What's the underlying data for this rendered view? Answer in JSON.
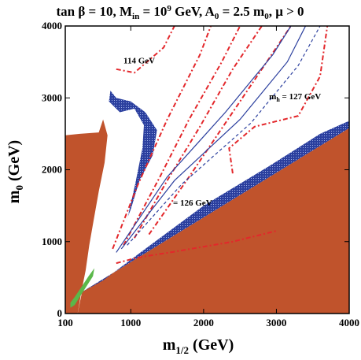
{
  "chart_data": {
    "type": "contour",
    "title": {
      "main": "tan β = 10, M",
      "sub1": "in",
      "mid1": " = 10",
      "sup": "9",
      "mid2": " GeV, A",
      "sub2": "0",
      "mid3": " = 2.5 m",
      "sub3": "0",
      "tail": ", μ > 0"
    },
    "xlabel": {
      "main": "m",
      "sub": "1/2",
      "tail": " (GeV)"
    },
    "ylabel": {
      "main": "m",
      "sub": "0",
      "tail": " (GeV)"
    },
    "xlim": [
      100,
      4000
    ],
    "ylim": [
      0,
      4000
    ],
    "xticks": [
      100,
      1000,
      2000,
      3000,
      4000
    ],
    "yticks": [
      0,
      1000,
      2000,
      3000,
      4000
    ],
    "grid": false,
    "colors": {
      "excluded_stau_lsp": "#c0532c",
      "dark_matter_band": "#2b3f9e",
      "bsmumu_green": "#5bb84a",
      "higgs_contours": "#e3272b",
      "alt_contours": "#2b3f9e"
    },
    "annotations": [
      {
        "text": "114 GeV",
        "x": 900,
        "y": 3480
      },
      {
        "text": "m",
        "sub": "h",
        "rest": " = 127 GeV",
        "x": 2900,
        "y": 2980
      },
      {
        "text": "= 126 GeV",
        "x": 1580,
        "y": 1500
      }
    ],
    "regions": {
      "brown_left": [
        [
          100,
          0
        ],
        [
          100,
          2480
        ],
        [
          300,
          2500
        ],
        [
          560,
          2520
        ],
        [
          620,
          2700
        ],
        [
          680,
          2480
        ],
        [
          640,
          2100
        ],
        [
          560,
          1700
        ],
        [
          490,
          1300
        ],
        [
          430,
          950
        ],
        [
          380,
          600
        ],
        [
          320,
          300
        ],
        [
          270,
          0
        ]
      ],
      "brown_right": [
        [
          330,
          300
        ],
        [
          4000,
          2580
        ],
        [
          4000,
          0
        ],
        [
          270,
          0
        ]
      ],
      "green": [
        [
          170,
          80
        ],
        [
          230,
          120
        ],
        [
          330,
          280
        ],
        [
          480,
          520
        ],
        [
          500,
          630
        ],
        [
          420,
          520
        ],
        [
          330,
          380
        ],
        [
          230,
          230
        ],
        [
          170,
          150
        ]
      ],
      "blue_coannihilation": [
        [
          330,
          300
        ],
        [
          4000,
          2580
        ],
        [
          4000,
          2680
        ],
        [
          3600,
          2500
        ],
        [
          2900,
          2050
        ],
        [
          2000,
          1500
        ],
        [
          1200,
          900
        ],
        [
          620,
          460
        ]
      ],
      "blue_hook": [
        [
          720,
          3100
        ],
        [
          800,
          3000
        ],
        [
          1000,
          2950
        ],
        [
          1200,
          2800
        ],
        [
          1360,
          2550
        ],
        [
          1300,
          2200
        ],
        [
          1120,
          1850
        ],
        [
          1000,
          1450
        ],
        [
          880,
          1150
        ],
        [
          960,
          1350
        ],
        [
          1060,
          1800
        ],
        [
          1160,
          2300
        ],
        [
          1180,
          2620
        ],
        [
          1050,
          2850
        ],
        [
          850,
          2800
        ],
        [
          700,
          2950
        ]
      ]
    },
    "series": [
      {
        "style": "red-dashdot",
        "points": [
          [
            750,
            900
          ],
          [
            1100,
            1800
          ],
          [
            1500,
            2700
          ],
          [
            1950,
            3600
          ],
          [
            2100,
            4000
          ]
        ]
      },
      {
        "style": "red-dashdot",
        "points": [
          [
            900,
            950
          ],
          [
            1400,
            1900
          ],
          [
            1800,
            2700
          ],
          [
            2250,
            3500
          ],
          [
            2500,
            4000
          ]
        ]
      },
      {
        "style": "red-dashdot",
        "points": [
          [
            1050,
            1050
          ],
          [
            1500,
            1850
          ],
          [
            1950,
            2600
          ],
          [
            2400,
            3400
          ],
          [
            2800,
            4000
          ]
        ]
      },
      {
        "style": "red-dashdot",
        "points": [
          [
            1250,
            1100
          ],
          [
            1800,
            1900
          ],
          [
            2300,
            2650
          ],
          [
            2800,
            3400
          ],
          [
            3200,
            4000
          ]
        ]
      },
      {
        "style": "red-dashdot",
        "points": [
          [
            2400,
            1950
          ],
          [
            2350,
            2300
          ],
          [
            2700,
            2600
          ],
          [
            3300,
            2750
          ],
          [
            3600,
            3300
          ],
          [
            3700,
            4000
          ]
        ]
      },
      {
        "style": "red-dashdot",
        "points": [
          [
            800,
            3400
          ],
          [
            1050,
            3350
          ],
          [
            1450,
            3700
          ],
          [
            1600,
            4000
          ]
        ]
      },
      {
        "style": "red-dashdot",
        "points": [
          [
            800,
            700
          ],
          [
            1100,
            780
          ],
          [
            1600,
            860
          ],
          [
            2400,
            1000
          ],
          [
            3000,
            1150
          ]
        ]
      },
      {
        "style": "blue-solid",
        "points": [
          [
            800,
            850
          ],
          [
            1500,
            1900
          ],
          [
            2300,
            2800
          ],
          [
            2950,
            3600
          ],
          [
            3200,
            4000
          ]
        ]
      },
      {
        "style": "blue-solid",
        "points": [
          [
            870,
            900
          ],
          [
            1600,
            1850
          ],
          [
            2500,
            2700
          ],
          [
            3150,
            3500
          ],
          [
            3400,
            4000
          ]
        ]
      },
      {
        "style": "blue-dashed",
        "points": [
          [
            950,
            950
          ],
          [
            1700,
            1800
          ],
          [
            2650,
            2650
          ],
          [
            3300,
            3450
          ],
          [
            3600,
            4000
          ]
        ]
      }
    ]
  }
}
